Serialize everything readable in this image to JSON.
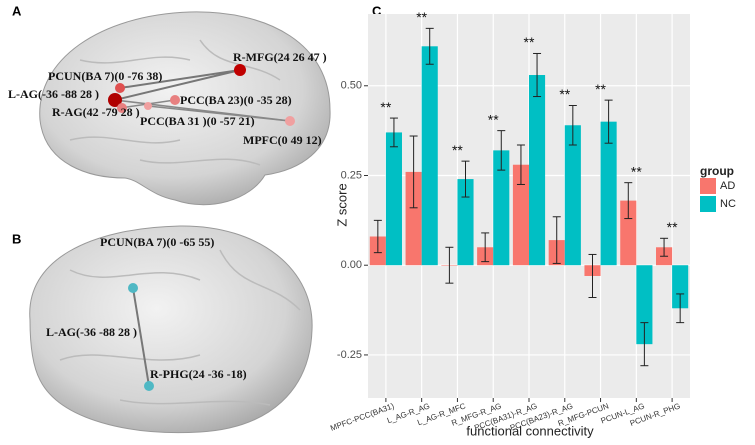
{
  "brain_panels": [
    {
      "label": "A",
      "regions": [
        "R-MFG(24 26 47 )",
        "PCUN(BA 7)(0 -76 38)",
        "L-AG(-36 -88 28 )",
        "R-AG(42 -79 28 )",
        "PCC(BA 23)(0 -35 28)",
        "PCC(BA 31 )(0 -57 21)",
        "MPFC(0 49 12)"
      ]
    },
    {
      "label": "B",
      "regions": [
        "PCUN(BA 7)(0 -65 55)",
        "L-AG(-36 -88 28 )",
        "R-PHG(24 -36 -18)"
      ]
    }
  ],
  "chart_data": {
    "type": "bar",
    "panel_label": "C",
    "x_label": "functional connectivity",
    "y_label": "Z score",
    "legend_title": "group",
    "categories": [
      "MPFC-PCC(BA31)",
      "L_AG-R_AG",
      "L_AG-R_MFC",
      "R_MFG-R_AG",
      "PCC(BA31)-R_AG",
      "PCC(BA23)-R_AG",
      "R_MFG-PCUN",
      "PCUN-L_AG",
      "PCUN-R_PHG"
    ],
    "significance": [
      "**",
      "**",
      "**",
      "**",
      "**",
      "**",
      "**",
      "**",
      "**"
    ],
    "series": [
      {
        "name": "AD",
        "color": "#f8766d",
        "values": [
          0.08,
          0.26,
          0.0,
          0.05,
          0.28,
          0.07,
          -0.03,
          0.18,
          0.05
        ],
        "errors": [
          0.045,
          0.1,
          0.05,
          0.04,
          0.055,
          0.065,
          0.06,
          0.05,
          0.025
        ]
      },
      {
        "name": "NC",
        "color": "#00bfc4",
        "values": [
          0.37,
          0.61,
          0.24,
          0.32,
          0.53,
          0.39,
          0.4,
          -0.22,
          -0.12
        ],
        "errors": [
          0.04,
          0.05,
          0.05,
          0.055,
          0.06,
          0.055,
          0.06,
          0.06,
          0.04
        ]
      }
    ],
    "ylim": [
      -0.37,
      0.7
    ],
    "yticks": [
      {
        "value": -0.25,
        "label": "-0.25"
      },
      {
        "value": 0,
        "label": "0.00"
      },
      {
        "value": 0.25,
        "label": "0.25"
      },
      {
        "value": 0.5,
        "label": "0.50"
      }
    ],
    "grid": true
  }
}
